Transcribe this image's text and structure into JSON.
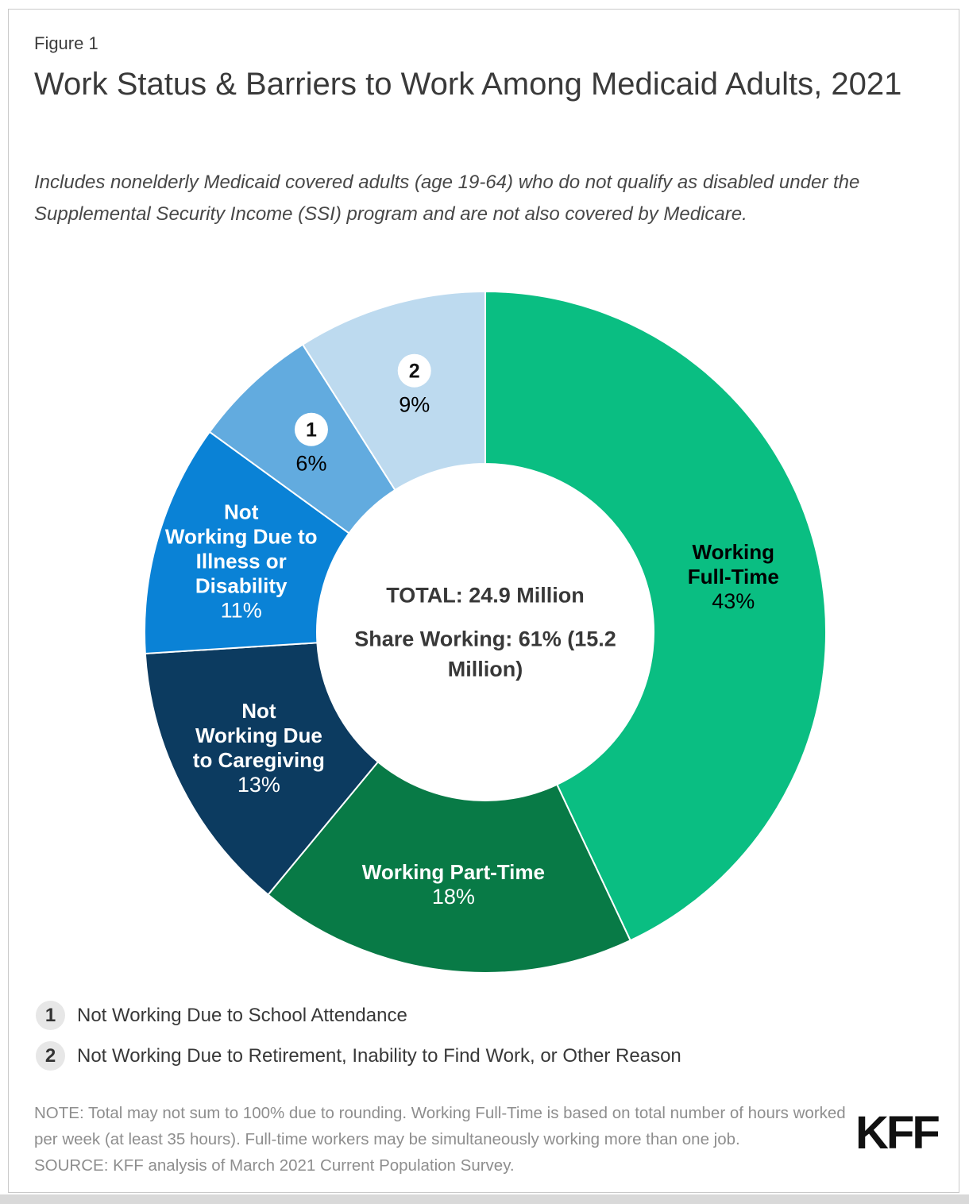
{
  "figure_label": "Figure 1",
  "title": "Work Status & Barriers to Work Among Medicaid Adults, 2021",
  "subtitle": "Includes nonelderly Medicaid covered adults (age 19-64) who do not qualify as disabled under the Supplemental Security Income (SSI) program and are not also covered by Medicare.",
  "chart_data": {
    "type": "pie",
    "subtype": "donut",
    "title": "Work Status & Barriers to Work Among Medicaid Adults, 2021",
    "direction": "clockwise",
    "start_angle_deg": 0,
    "donut_inner_ratio": 0.495,
    "legend_position": "footnotes-below",
    "slices": [
      {
        "name": "Working Full-Time",
        "value_pct": 43,
        "label": "43%",
        "color": "#0ABE82",
        "label_style": "inline",
        "label_lines": [
          "Working",
          "Full-Time"
        ],
        "label_text_color": "#000000"
      },
      {
        "name": "Working Part-Time",
        "value_pct": 18,
        "label": "18%",
        "color": "#087A46",
        "label_style": "inline",
        "label_lines": [
          "Working Part-Time"
        ],
        "label_text_color": "#FFFFFF"
      },
      {
        "name": "Not Working Due to Caregiving",
        "value_pct": 13,
        "label": "13%",
        "color": "#0C3B60",
        "label_style": "inline",
        "label_lines": [
          "Not",
          "Working Due",
          "to Caregiving"
        ],
        "label_text_color": "#FFFFFF"
      },
      {
        "name": "Not Working Due to Illness or Disability",
        "value_pct": 11,
        "label": "11%",
        "color": "#0A82D6",
        "label_style": "inline",
        "label_lines": [
          "Not",
          "Working Due to",
          "Illness or",
          "Disability"
        ],
        "label_text_color": "#FFFFFF"
      },
      {
        "name": "Not Working Due to School Attendance",
        "value_pct": 6,
        "label": "6%",
        "color": "#62ABDF",
        "label_style": "badge",
        "badge": "1",
        "label_text_color": "#000000"
      },
      {
        "name": "Not Working Due to Retirement, Inability to Find Work, or Other Reason",
        "value_pct": 9,
        "label": "9%",
        "color": "#BDDAEF",
        "label_style": "badge",
        "badge": "2",
        "label_text_color": "#000000"
      }
    ],
    "center_labels": {
      "total": "TOTAL: 24.9 Million",
      "share_working": "Share Working: 61% (15.2 Million)"
    }
  },
  "footnotes": [
    {
      "num": "1",
      "label": "Not Working Due to School Attendance"
    },
    {
      "num": "2",
      "label": "Not Working Due to Retirement, Inability to Find Work, or Other Reason"
    }
  ],
  "note": "NOTE: Total may not sum to 100% due to rounding. Working Full-Time is based on total number of hours worked per week (at least 35 hours). Full-time workers may be simultaneously working more than one job.",
  "source": "SOURCE: KFF analysis of March 2021 Current Population Survey.",
  "logo": "KFF",
  "colors": {
    "working_full_time": "#0ABE82",
    "working_part_time": "#087A46",
    "caregiving": "#0C3B60",
    "illness_disability": "#0A82D6",
    "school_attendance": "#62ABDF",
    "retirement_other": "#BDDAEF",
    "note_text": "#8e8e8e",
    "legend_badge_bg": "#e7e7e7"
  }
}
